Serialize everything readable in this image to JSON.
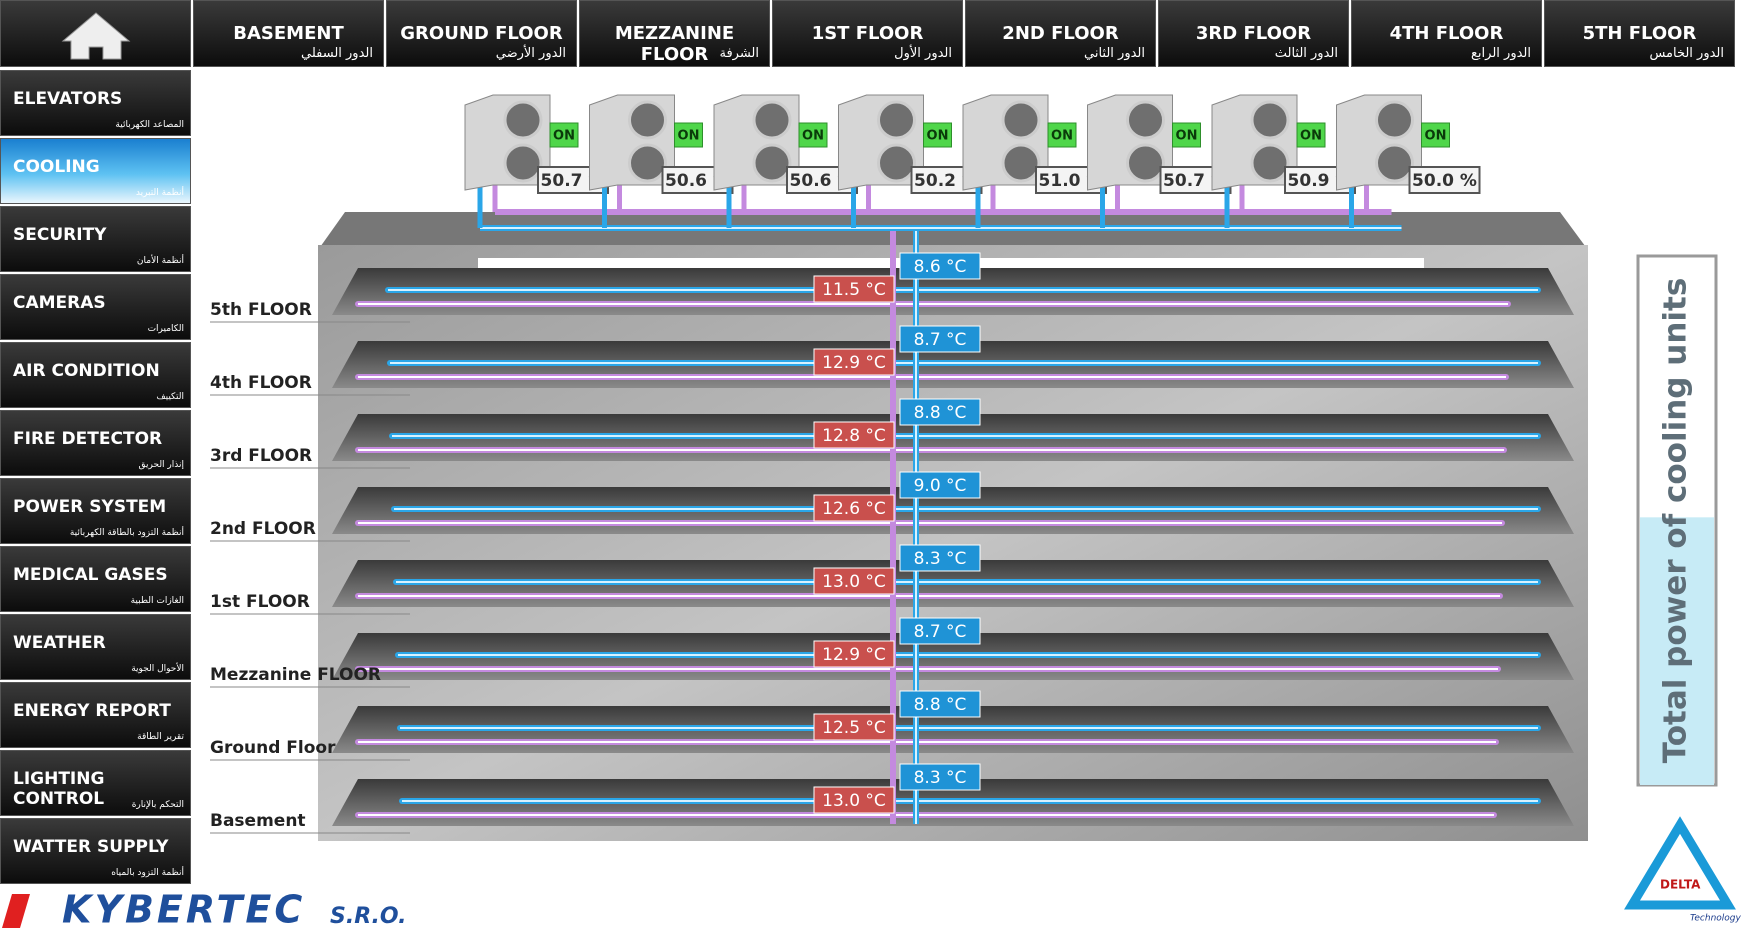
{
  "top_nav": [
    {
      "en": "BASEMENT",
      "ar": "الدور السفلي"
    },
    {
      "en": "GROUND FLOOR",
      "ar": "الدور الأرضي"
    },
    {
      "en": "MEZZANINE FLOOR",
      "ar": "الشرفة"
    },
    {
      "en": "1ST FLOOR",
      "ar": "الدور الأول"
    },
    {
      "en": "2ND FLOOR",
      "ar": "الدور الثاني"
    },
    {
      "en": "3RD FLOOR",
      "ar": "الدور الثالث"
    },
    {
      "en": "4TH FLOOR",
      "ar": "الدور الرابع"
    },
    {
      "en": "5TH FLOOR",
      "ar": "الدور الخامس"
    }
  ],
  "side_menu": [
    {
      "en": "ELEVATORS",
      "ar": "المصاعد الكهربائية"
    },
    {
      "en": "COOLING",
      "ar": "أنظمة التبريد",
      "active": true
    },
    {
      "en": "SECURITY",
      "ar": "أنظمة الأمان"
    },
    {
      "en": "CAMERAS",
      "ar": "الكاميرات"
    },
    {
      "en": "AIR CONDITION",
      "ar": "التكييف"
    },
    {
      "en": "FIRE DETECTOR",
      "ar": "إنذار الحريق"
    },
    {
      "en": "POWER SYSTEM",
      "ar": "أنظمة التزود بالطاقة الكهربائية"
    },
    {
      "en": "MEDICAL GASES",
      "ar": "الغازات الطبية"
    },
    {
      "en": "WEATHER",
      "ar": "الأحوال الجوية"
    },
    {
      "en": "ENERGY REPORT",
      "ar": "تقرير الطاقة"
    },
    {
      "en": "LIGHTING CONTROL",
      "ar": "التحكم بالإنارة"
    },
    {
      "en": "WATTER SUPPLY",
      "ar": "أنظمة التزود بالمياه"
    }
  ],
  "units": [
    {
      "status": "ON",
      "power": "50.7 %"
    },
    {
      "status": "ON",
      "power": "50.6 %"
    },
    {
      "status": "ON",
      "power": "50.6 %"
    },
    {
      "status": "ON",
      "power": "50.2 %"
    },
    {
      "status": "ON",
      "power": "51.0 %"
    },
    {
      "status": "ON",
      "power": "50.7 %"
    },
    {
      "status": "ON",
      "power": "50.9 %"
    },
    {
      "status": "ON",
      "power": "50.0 %"
    }
  ],
  "floors": [
    {
      "name": "5th FLOOR",
      "supply": "8.6 °C",
      "return": "11.5 °C"
    },
    {
      "name": "4th FLOOR",
      "supply": "8.7 °C",
      "return": "12.9 °C"
    },
    {
      "name": "3rd FLOOR",
      "supply": "8.8 °C",
      "return": "12.8 °C"
    },
    {
      "name": "2nd FLOOR",
      "supply": "9.0 °C",
      "return": "12.6 °C"
    },
    {
      "name": "1st FLOOR",
      "supply": "8.3 °C",
      "return": "13.0 °C"
    },
    {
      "name": "Mezzanine FLOOR",
      "supply": "8.7 °C",
      "return": "12.9 °C"
    },
    {
      "name": "Ground Floor",
      "supply": "8.8 °C",
      "return": "12.5 °C"
    },
    {
      "name": "Basement",
      "supply": "8.3 °C",
      "return": "13.0 °C"
    }
  ],
  "gauge": {
    "label": "Total power of cooling units",
    "value": 50.6,
    "range": [
      0,
      100
    ]
  },
  "logo": {
    "name": "KYBERTEC",
    "suffix": "S.R.O."
  },
  "partner_logo": {
    "name": "DELTA",
    "sub": "Technology"
  }
}
